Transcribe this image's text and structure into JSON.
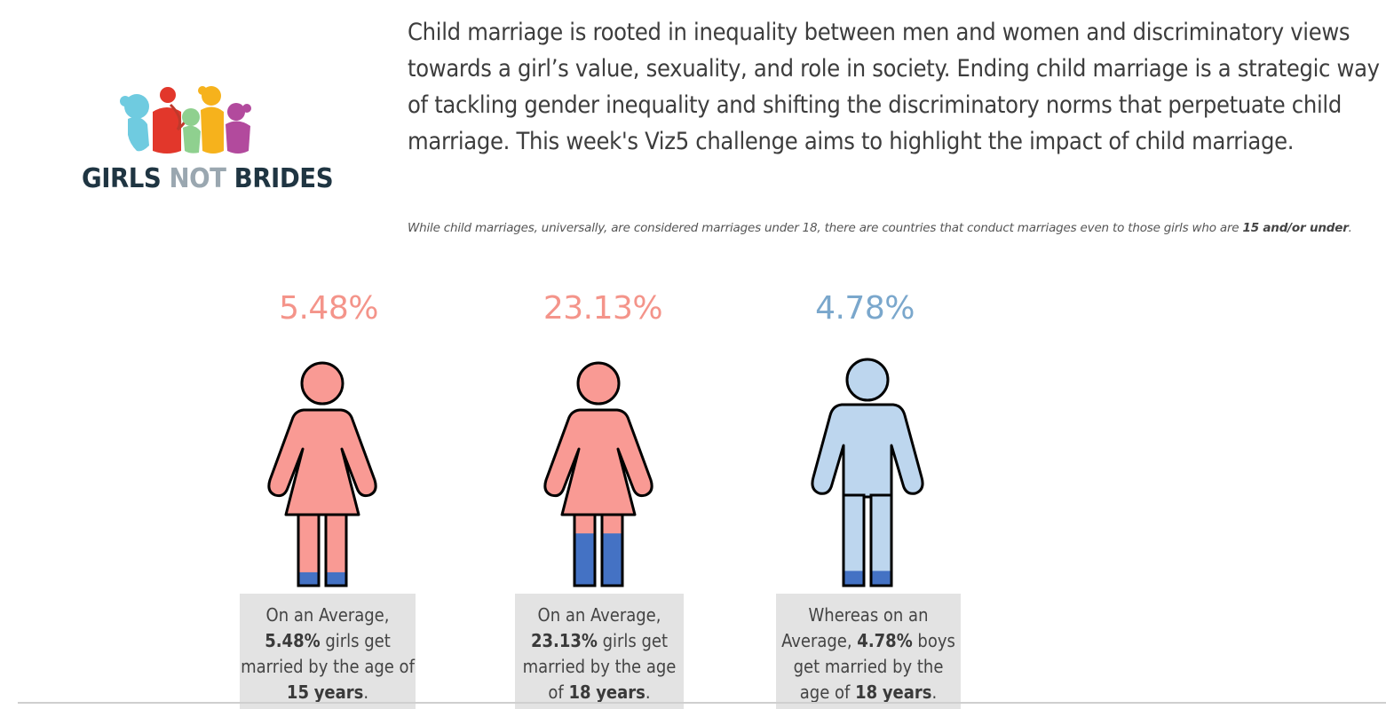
{
  "logo": {
    "word1": "GIRLS",
    "word2": "NOT",
    "word3": "BRIDES"
  },
  "intro_text": "Child marriage is rooted in inequality between men and women and discriminatory views towards a girl’s value, sexuality, and role in society. Ending child marriage is a strategic way of tackling gender inequality and shifting the discriminatory norms that perpetuate child marriage. This week's Viz5 challenge aims to highlight the impact of child marriage.",
  "note": {
    "text": "While child marriages, universally, are considered marriages under 18, there are countries that conduct marriages even to those girls who are ",
    "bold": "15 and/or under",
    "end": "."
  },
  "stats": [
    {
      "value": "5.48%",
      "fill_fraction": 0.0548,
      "caption_pre": "On an Average,",
      "caption_bold": "5.48%",
      "caption_mid": " girls get married by the age of ",
      "caption_age": "15",
      "caption_unit": "years",
      "caption_end": "."
    },
    {
      "value": "23.13%",
      "fill_fraction": 0.2313,
      "caption_pre": "On an Average,",
      "caption_bold": "23.13%",
      "caption_mid": " girls get married by the age of ",
      "caption_age": "18",
      "caption_unit": "years",
      "caption_end": "."
    },
    {
      "value": "4.78%",
      "fill_fraction": 0.0478,
      "caption_pre": "Whereas on an Average, ",
      "caption_bold": "4.78%",
      "caption_mid": " boys get married by the age of ",
      "caption_age": "18",
      "caption_unit": "years",
      "caption_end": "."
    }
  ],
  "colors": {
    "girl_pink": "#f99a94",
    "boy_blue": "#bdd6ee",
    "fill_blue": "#4472c4",
    "stat_girl": "#f4948a",
    "stat_boy": "#7aa7cc",
    "caption_bg": "#e3e3e3"
  }
}
